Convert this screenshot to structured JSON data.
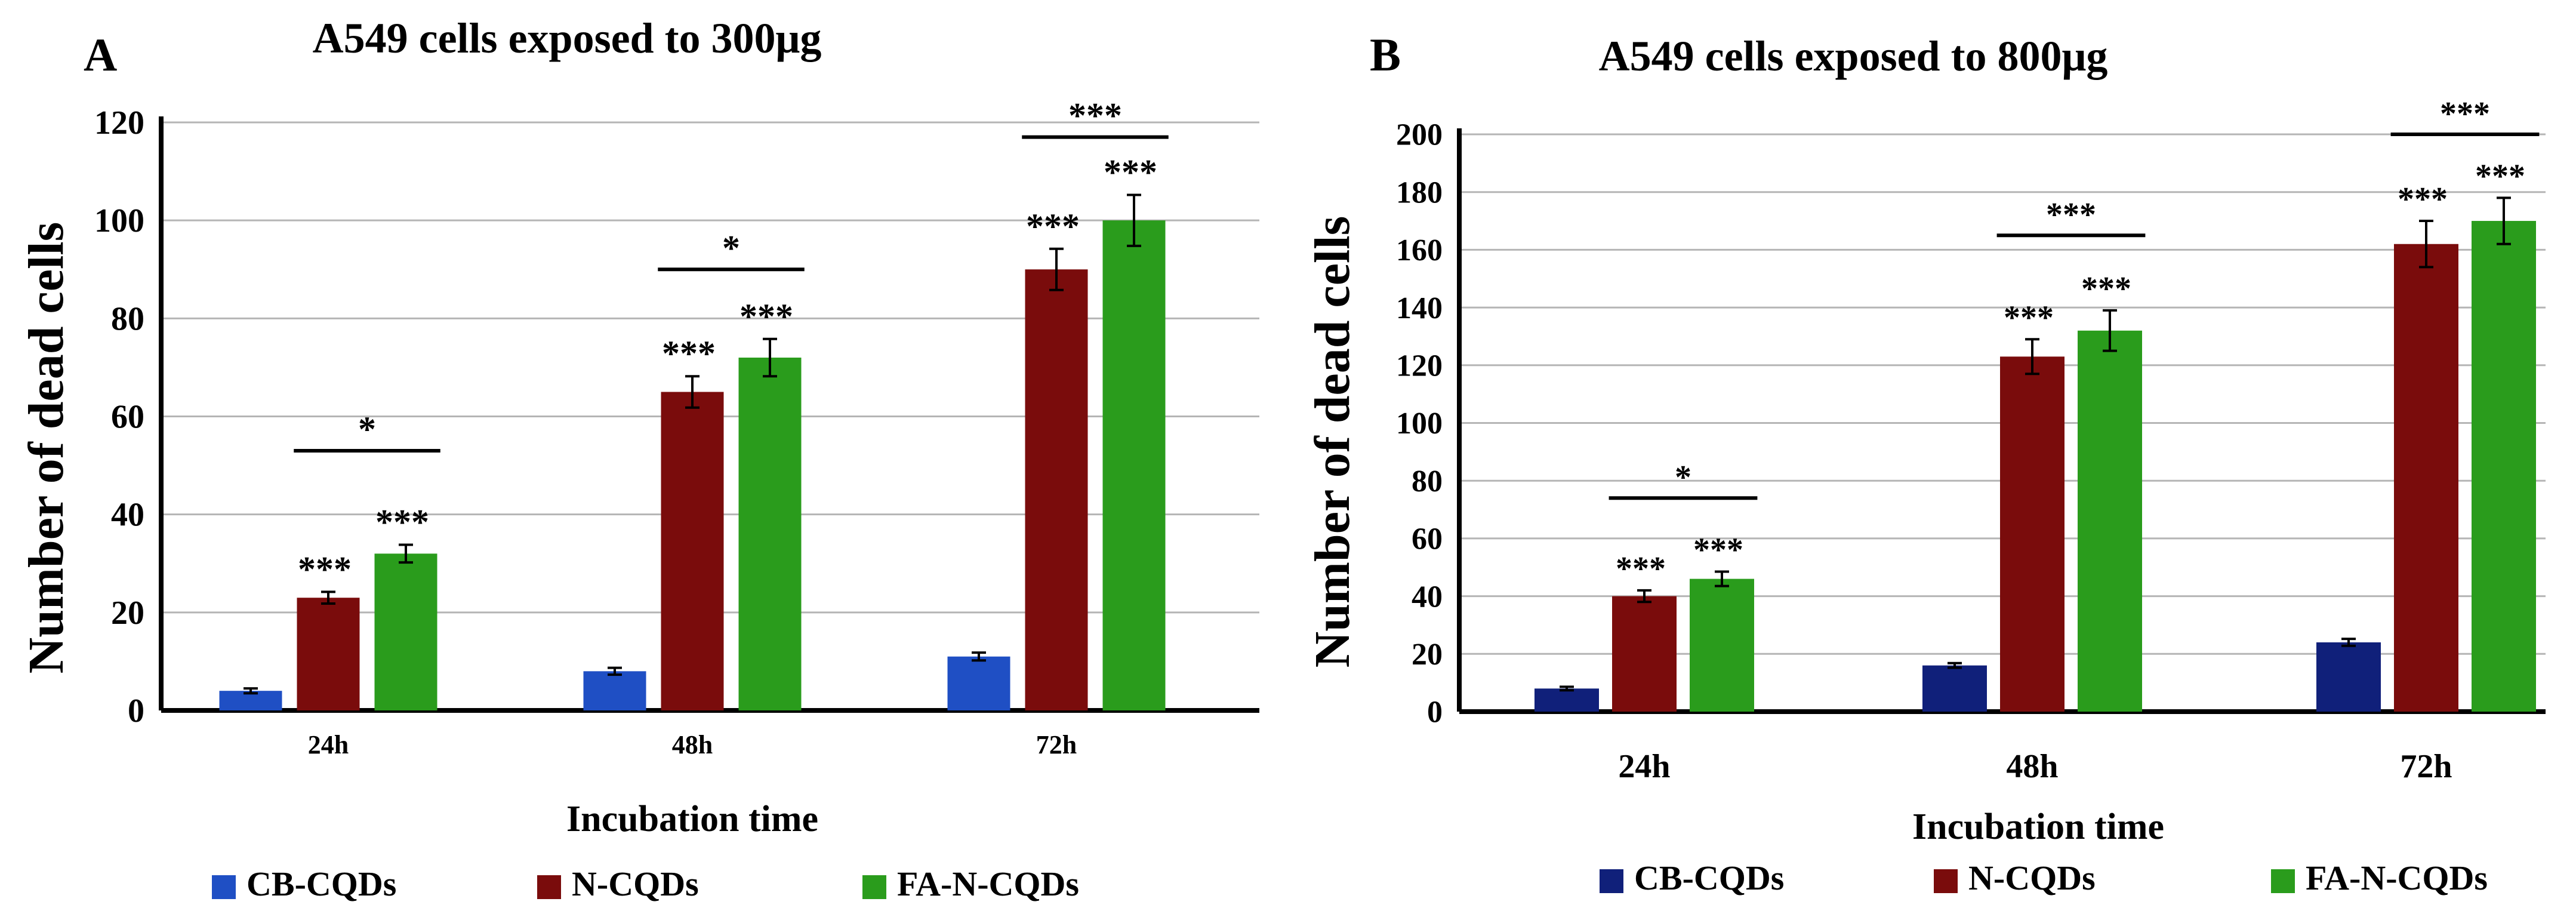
{
  "figure": {
    "background": "#ffffff"
  },
  "chart_data": [
    {
      "type": "bar",
      "panel_label": "A",
      "title": "A549 cells exposed to 300μg",
      "xlabel": "Incubation time",
      "ylabel": "Number of dead cells",
      "categories": [
        "24h",
        "48h",
        "72h"
      ],
      "ylim": [
        0,
        120
      ],
      "yticks": [
        0,
        20,
        40,
        60,
        80,
        100,
        120
      ],
      "grid": true,
      "legend": "bottom",
      "series": [
        {
          "name": "CB-CQDs",
          "color": "#1f4fc4",
          "values": [
            4,
            8,
            11
          ],
          "errors": [
            0.5,
            0.7,
            0.8
          ],
          "annotations": [
            "",
            "",
            ""
          ]
        },
        {
          "name": "N-CQDs",
          "color": "#7a0c0c",
          "values": [
            23,
            65,
            90
          ],
          "errors": [
            1.2,
            3.2,
            4.2
          ],
          "annotations": [
            "***",
            "***",
            "***"
          ]
        },
        {
          "name": "FA-N-CQDs",
          "color": "#2a9c1c",
          "values": [
            32,
            72,
            100
          ],
          "errors": [
            1.8,
            3.8,
            5.2
          ],
          "annotations": [
            "***",
            "***",
            "***"
          ]
        }
      ],
      "brackets": [
        {
          "category": 0,
          "level": 53,
          "text": "*"
        },
        {
          "category": 1,
          "level": 90,
          "text": "*"
        },
        {
          "category": 2,
          "level": 117,
          "text": "***"
        }
      ]
    },
    {
      "type": "bar",
      "panel_label": "B",
      "title": "A549 cells exposed to 800μg",
      "xlabel": "Incubation time",
      "ylabel": "Number of dead cells",
      "categories": [
        "24h",
        "48h",
        "72h"
      ],
      "ylim": [
        0,
        200
      ],
      "yticks": [
        0,
        20,
        40,
        60,
        80,
        100,
        120,
        140,
        160,
        180,
        200
      ],
      "grid": true,
      "legend": "bottom",
      "series": [
        {
          "name": "CB-CQDs",
          "color": "#10207a",
          "values": [
            8,
            16,
            24
          ],
          "errors": [
            0.6,
            0.8,
            1.2
          ],
          "annotations": [
            "",
            "",
            ""
          ]
        },
        {
          "name": "N-CQDs",
          "color": "#7a0c0c",
          "values": [
            40,
            123,
            162
          ],
          "errors": [
            2,
            6,
            8
          ],
          "annotations": [
            "***",
            "***",
            "***"
          ]
        },
        {
          "name": "FA-N-CQDs",
          "color": "#2a9c1c",
          "values": [
            46,
            132,
            170
          ],
          "errors": [
            2.5,
            7,
            8
          ],
          "annotations": [
            "***",
            "***",
            "***"
          ]
        }
      ],
      "brackets": [
        {
          "category": 0,
          "level": 74,
          "text": "*"
        },
        {
          "category": 1,
          "level": 165,
          "text": "***"
        },
        {
          "category": 2,
          "level": 200,
          "text": "***"
        }
      ]
    }
  ]
}
